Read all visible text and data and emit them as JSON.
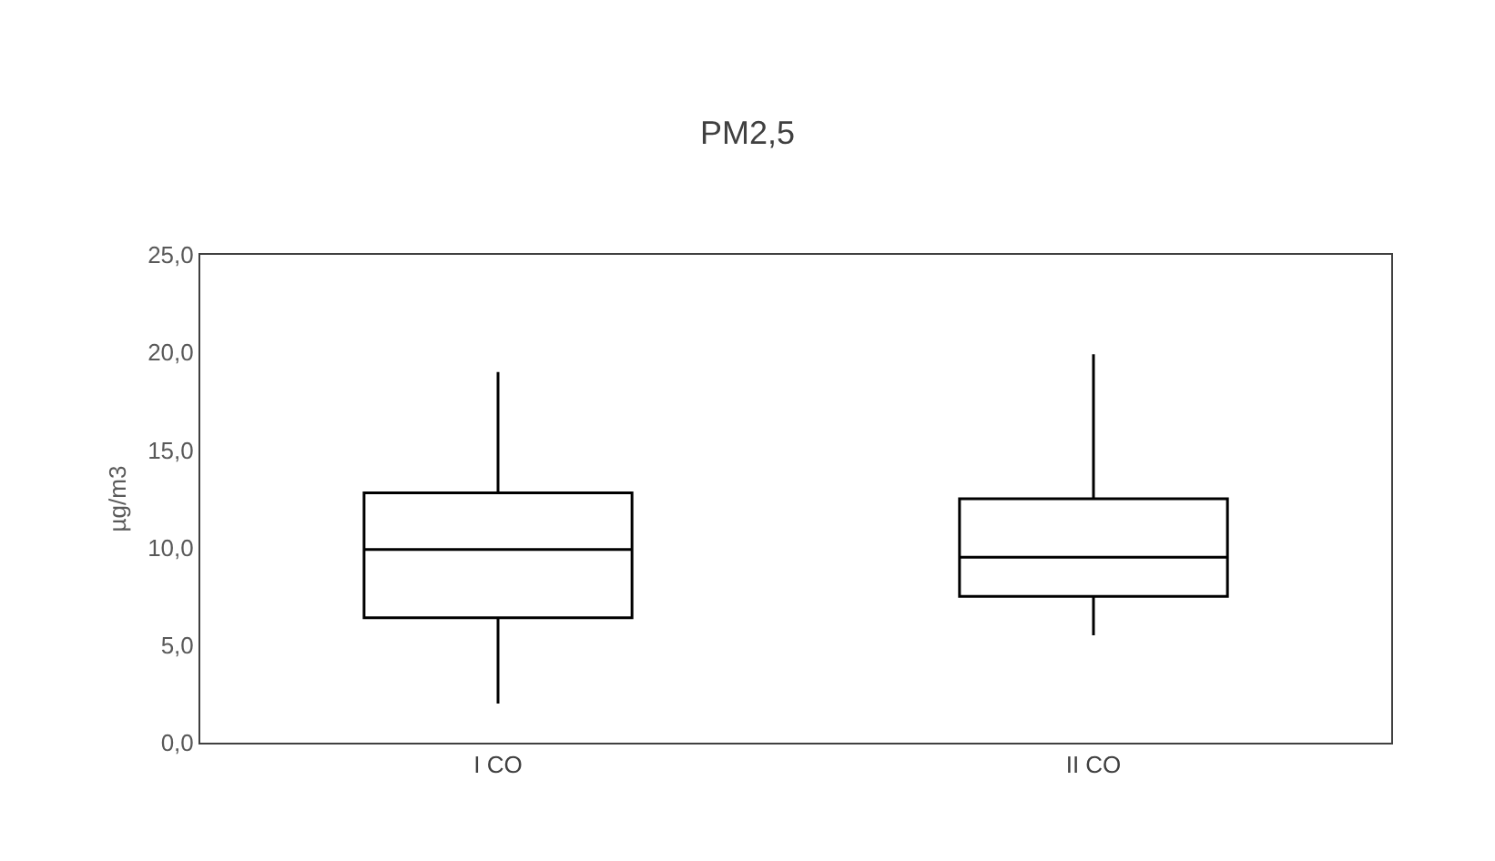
{
  "chart_data": {
    "type": "box",
    "title": "PM2,5",
    "ylabel": "µg/m3",
    "categories": [
      "I CO",
      "II CO"
    ],
    "series": [
      {
        "color": "#000000",
        "boxes": [
          {
            "low": 2.0,
            "q1": 6.4,
            "median": 9.9,
            "q3": 12.8,
            "high": 19.0
          },
          {
            "low": 5.5,
            "q1": 7.5,
            "median": 9.5,
            "q3": 12.5,
            "high": 19.9
          }
        ]
      }
    ],
    "ylim": [
      0,
      25
    ],
    "yticks": [
      {
        "value": 0,
        "label": "0,0"
      },
      {
        "value": 5,
        "label": "5,0"
      },
      {
        "value": 10,
        "label": "10,0"
      },
      {
        "value": 15,
        "label": "15,0"
      },
      {
        "value": 20,
        "label": "20,0"
      },
      {
        "value": 25,
        "label": "25,0"
      }
    ],
    "grid": false
  }
}
